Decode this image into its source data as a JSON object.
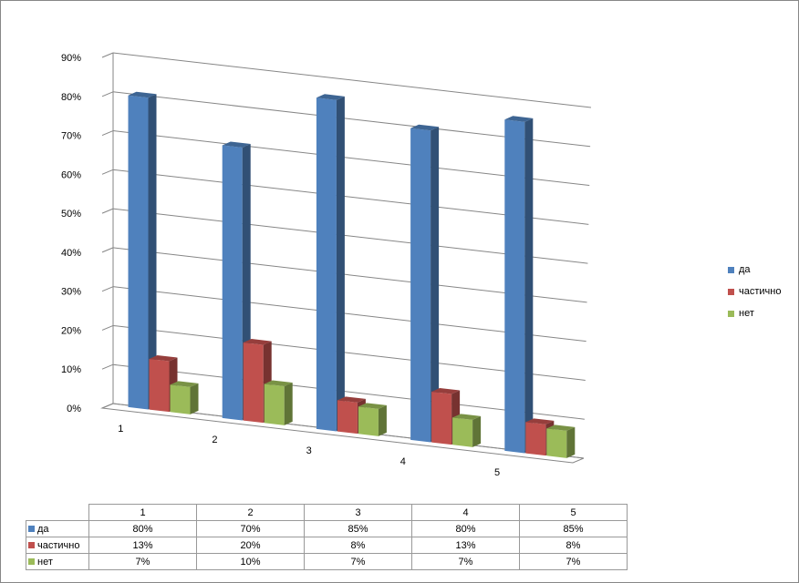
{
  "chart_data": {
    "type": "bar",
    "style": "3d-clustered-column",
    "categories": [
      "1",
      "2",
      "3",
      "4",
      "5"
    ],
    "series": [
      {
        "name": "да",
        "values": [
          80,
          70,
          85,
          80,
          85
        ],
        "color": "#4F81BD"
      },
      {
        "name": "частично",
        "values": [
          13,
          20,
          8,
          13,
          8
        ],
        "color": "#C0504D"
      },
      {
        "name": "нет",
        "values": [
          7,
          10,
          7,
          7,
          7
        ],
        "color": "#9BBB59"
      }
    ],
    "ylim": [
      0,
      90
    ],
    "yticks": [
      "0%",
      "10%",
      "20%",
      "30%",
      "40%",
      "50%",
      "60%",
      "70%",
      "80%",
      "90%"
    ],
    "grid": true,
    "legend": "right",
    "data_table": {
      "header": [
        "1",
        "2",
        "3",
        "4",
        "5"
      ],
      "rows": [
        {
          "label": "да",
          "values": [
            "80%",
            "70%",
            "85%",
            "80%",
            "85%"
          ]
        },
        {
          "label": "частично",
          "values": [
            "13%",
            "20%",
            "8%",
            "13%",
            "8%"
          ]
        },
        {
          "label": "нет",
          "values": [
            "7%",
            "10%",
            "7%",
            "7%",
            "7%"
          ]
        }
      ]
    }
  }
}
